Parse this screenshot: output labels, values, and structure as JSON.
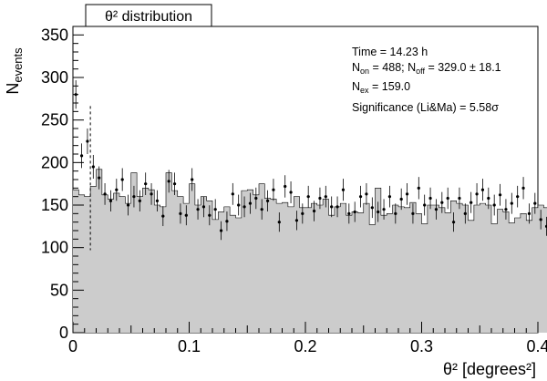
{
  "chart_data": {
    "type": "bar",
    "title": "θ² distribution",
    "xlabel": "θ² [degrees²]",
    "ylabel": "N_events",
    "xlim": [
      0,
      0.4
    ],
    "ylim": [
      0,
      360
    ],
    "x_ticks": [
      "0",
      "0.1",
      "0.2",
      "0.3",
      "0.4"
    ],
    "y_ticks": [
      "0",
      "50",
      "100",
      "150",
      "200",
      "250",
      "300",
      "350"
    ],
    "bin_width": 0.005,
    "colors": {
      "off_fill": "#cccccc",
      "on_marker": "#000000"
    },
    "stats": {
      "time": "Time = 14.23 h",
      "n_on_prefix": "N",
      "n_on_sub": "on",
      "n_on_value": " = 488; N",
      "n_off_sub": "off",
      "n_off_value": " = 329.0 ± 18.1",
      "n_ex_prefix": "N",
      "n_ex_sub": "ex",
      "n_ex_value": " = 159.0",
      "significance": "Significance (Li&Ma) = 5.58σ"
    },
    "cut_line_x": 0.015,
    "series": [
      {
        "name": "off",
        "values": [
          168,
          162,
          160,
          172,
          192,
          162,
          157,
          164,
          160,
          152,
          188,
          160,
          170,
          168,
          150,
          148,
          188,
          167,
          160,
          152,
          175,
          150,
          160,
          155,
          133,
          142,
          148,
          138,
          135,
          167,
          168,
          162,
          175,
          158,
          157,
          152,
          153,
          148,
          160,
          147,
          147,
          152,
          150,
          157,
          138,
          148,
          152,
          138,
          142,
          141,
          152,
          127,
          170,
          138,
          140,
          150,
          148,
          147,
          153,
          140,
          128,
          150,
          150,
          147,
          141,
          155,
          152,
          150,
          132,
          150,
          152,
          150,
          128,
          145,
          142,
          129,
          135,
          140,
          132,
          147,
          150,
          147,
          128,
          132,
          128,
          130,
          147,
          150,
          133,
          124,
          138,
          138,
          142,
          140,
          128,
          135,
          140,
          143,
          132,
          125,
          140,
          142,
          128,
          132,
          139,
          132,
          135,
          140,
          128,
          138,
          138,
          140,
          127,
          132,
          128,
          140,
          133,
          130,
          127,
          145
        ]
      },
      {
        "name": "on",
        "values": [
          280,
          208,
          225,
          195,
          182,
          163,
          155,
          168,
          180,
          150,
          160,
          155,
          175,
          163,
          155,
          137,
          178,
          175,
          140,
          138,
          180,
          145,
          148,
          138,
          145,
          120,
          131,
          163,
          150,
          148,
          152,
          158,
          145,
          155,
          168,
          130,
          172,
          165,
          132,
          140,
          160,
          143,
          158,
          160,
          148,
          148,
          168,
          140,
          142,
          160,
          163,
          147,
          142,
          145,
          160,
          140,
          157,
          163,
          140,
          170,
          150,
          158,
          145,
          153,
          158,
          130,
          158,
          140,
          153,
          163,
          168,
          158,
          150,
          162,
          145,
          152,
          160,
          170,
          140,
          152,
          133,
          125,
          145,
          170,
          145,
          138,
          160,
          135,
          128,
          150,
          138,
          153,
          130,
          165,
          148,
          132,
          133,
          132,
          137,
          145,
          158,
          130,
          130,
          140,
          138,
          142,
          125,
          152,
          140,
          133,
          143,
          143,
          155,
          140,
          133,
          135,
          128,
          125,
          118,
          143
        ]
      }
    ]
  }
}
